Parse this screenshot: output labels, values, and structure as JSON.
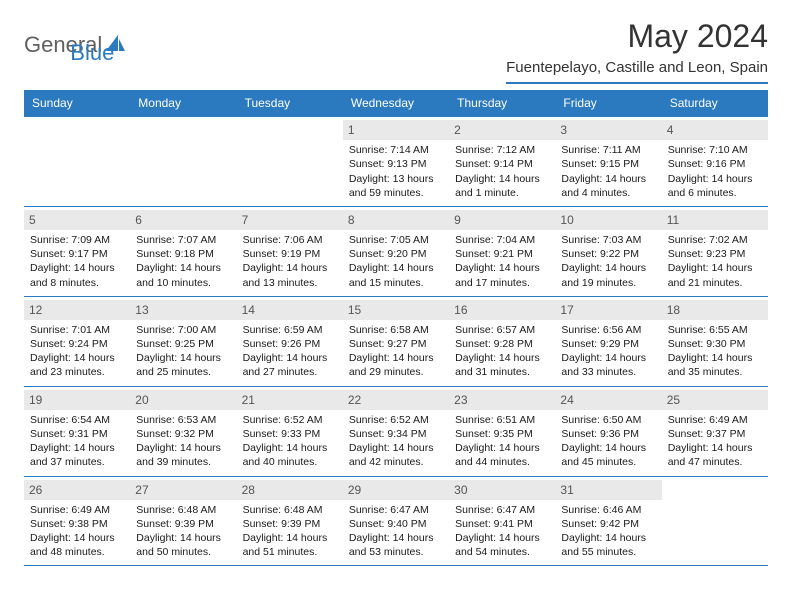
{
  "brand": {
    "word1": "General",
    "word2": "Blue",
    "word1_color": "#606060",
    "word2_color": "#2b79bf"
  },
  "title": "May 2024",
  "location": "Fuentepelayo, Castille and Leon, Spain",
  "colors": {
    "header_bg": "#2b79bf",
    "daynum_bg": "#e9e9e9",
    "border": "#2b79bf",
    "text": "#1a1a1a"
  },
  "fonts": {
    "title_size": 32,
    "location_size": 15,
    "weekday_size": 12,
    "body_size": 10.5
  },
  "weekdays": [
    "Sunday",
    "Monday",
    "Tuesday",
    "Wednesday",
    "Thursday",
    "Friday",
    "Saturday"
  ],
  "layout": {
    "first_weekday_index": 3,
    "days_in_month": 31
  },
  "days": {
    "1": {
      "sunrise": "7:14 AM",
      "sunset": "9:13 PM",
      "daylight": "13 hours and 59 minutes."
    },
    "2": {
      "sunrise": "7:12 AM",
      "sunset": "9:14 PM",
      "daylight": "14 hours and 1 minute."
    },
    "3": {
      "sunrise": "7:11 AM",
      "sunset": "9:15 PM",
      "daylight": "14 hours and 4 minutes."
    },
    "4": {
      "sunrise": "7:10 AM",
      "sunset": "9:16 PM",
      "daylight": "14 hours and 6 minutes."
    },
    "5": {
      "sunrise": "7:09 AM",
      "sunset": "9:17 PM",
      "daylight": "14 hours and 8 minutes."
    },
    "6": {
      "sunrise": "7:07 AM",
      "sunset": "9:18 PM",
      "daylight": "14 hours and 10 minutes."
    },
    "7": {
      "sunrise": "7:06 AM",
      "sunset": "9:19 PM",
      "daylight": "14 hours and 13 minutes."
    },
    "8": {
      "sunrise": "7:05 AM",
      "sunset": "9:20 PM",
      "daylight": "14 hours and 15 minutes."
    },
    "9": {
      "sunrise": "7:04 AM",
      "sunset": "9:21 PM",
      "daylight": "14 hours and 17 minutes."
    },
    "10": {
      "sunrise": "7:03 AM",
      "sunset": "9:22 PM",
      "daylight": "14 hours and 19 minutes."
    },
    "11": {
      "sunrise": "7:02 AM",
      "sunset": "9:23 PM",
      "daylight": "14 hours and 21 minutes."
    },
    "12": {
      "sunrise": "7:01 AM",
      "sunset": "9:24 PM",
      "daylight": "14 hours and 23 minutes."
    },
    "13": {
      "sunrise": "7:00 AM",
      "sunset": "9:25 PM",
      "daylight": "14 hours and 25 minutes."
    },
    "14": {
      "sunrise": "6:59 AM",
      "sunset": "9:26 PM",
      "daylight": "14 hours and 27 minutes."
    },
    "15": {
      "sunrise": "6:58 AM",
      "sunset": "9:27 PM",
      "daylight": "14 hours and 29 minutes."
    },
    "16": {
      "sunrise": "6:57 AM",
      "sunset": "9:28 PM",
      "daylight": "14 hours and 31 minutes."
    },
    "17": {
      "sunrise": "6:56 AM",
      "sunset": "9:29 PM",
      "daylight": "14 hours and 33 minutes."
    },
    "18": {
      "sunrise": "6:55 AM",
      "sunset": "9:30 PM",
      "daylight": "14 hours and 35 minutes."
    },
    "19": {
      "sunrise": "6:54 AM",
      "sunset": "9:31 PM",
      "daylight": "14 hours and 37 minutes."
    },
    "20": {
      "sunrise": "6:53 AM",
      "sunset": "9:32 PM",
      "daylight": "14 hours and 39 minutes."
    },
    "21": {
      "sunrise": "6:52 AM",
      "sunset": "9:33 PM",
      "daylight": "14 hours and 40 minutes."
    },
    "22": {
      "sunrise": "6:52 AM",
      "sunset": "9:34 PM",
      "daylight": "14 hours and 42 minutes."
    },
    "23": {
      "sunrise": "6:51 AM",
      "sunset": "9:35 PM",
      "daylight": "14 hours and 44 minutes."
    },
    "24": {
      "sunrise": "6:50 AM",
      "sunset": "9:36 PM",
      "daylight": "14 hours and 45 minutes."
    },
    "25": {
      "sunrise": "6:49 AM",
      "sunset": "9:37 PM",
      "daylight": "14 hours and 47 minutes."
    },
    "26": {
      "sunrise": "6:49 AM",
      "sunset": "9:38 PM",
      "daylight": "14 hours and 48 minutes."
    },
    "27": {
      "sunrise": "6:48 AM",
      "sunset": "9:39 PM",
      "daylight": "14 hours and 50 minutes."
    },
    "28": {
      "sunrise": "6:48 AM",
      "sunset": "9:39 PM",
      "daylight": "14 hours and 51 minutes."
    },
    "29": {
      "sunrise": "6:47 AM",
      "sunset": "9:40 PM",
      "daylight": "14 hours and 53 minutes."
    },
    "30": {
      "sunrise": "6:47 AM",
      "sunset": "9:41 PM",
      "daylight": "14 hours and 54 minutes."
    },
    "31": {
      "sunrise": "6:46 AM",
      "sunset": "9:42 PM",
      "daylight": "14 hours and 55 minutes."
    }
  },
  "labels": {
    "sunrise": "Sunrise:",
    "sunset": "Sunset:",
    "daylight": "Daylight:"
  }
}
